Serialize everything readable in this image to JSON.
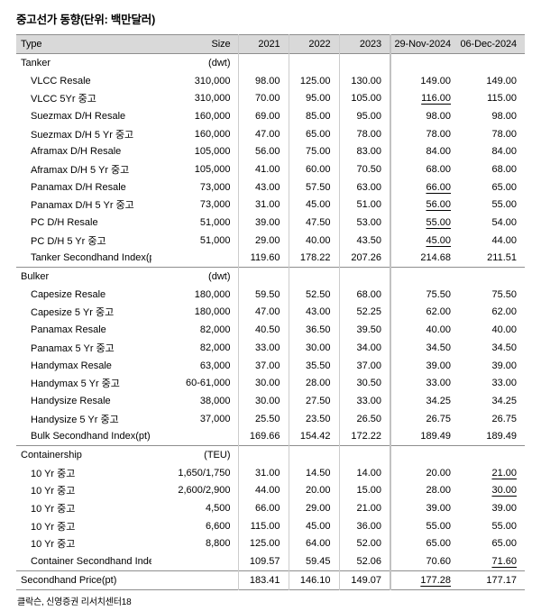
{
  "title": "중고선가 동향(단위: 백만달러)",
  "source": "클락슨, 신영증권 리서치센터18",
  "table": {
    "columns": [
      "Type",
      "Size",
      "2021",
      "2022",
      "2023",
      "29-Nov-2024",
      "06-Dec-2024"
    ],
    "rows": [
      {
        "kind": "section",
        "label": "Tanker",
        "size": "(dwt)",
        "values": [
          "",
          "",
          "",
          "",
          ""
        ]
      },
      {
        "kind": "item",
        "label": "VLCC Resale",
        "size": "310,000",
        "values": [
          "98.00",
          "125.00",
          "130.00",
          "149.00",
          "149.00"
        ]
      },
      {
        "kind": "item",
        "label": "VLCC 5Yr 중고",
        "size": "310,000",
        "values": [
          "70.00",
          "95.00",
          "105.00",
          "116.00",
          "115.00"
        ],
        "ul": [
          3
        ]
      },
      {
        "kind": "item",
        "label": "Suezmax D/H Resale",
        "size": "160,000",
        "values": [
          "69.00",
          "85.00",
          "95.00",
          "98.00",
          "98.00"
        ]
      },
      {
        "kind": "item",
        "label": "Suezmax D/H 5 Yr 중고",
        "size": "160,000",
        "values": [
          "47.00",
          "65.00",
          "78.00",
          "78.00",
          "78.00"
        ]
      },
      {
        "kind": "item",
        "label": "Aframax D/H Resale",
        "size": "105,000",
        "values": [
          "56.00",
          "75.00",
          "83.00",
          "84.00",
          "84.00"
        ]
      },
      {
        "kind": "item",
        "label": "Aframax D/H 5 Yr 중고",
        "size": "105,000",
        "values": [
          "41.00",
          "60.00",
          "70.50",
          "68.00",
          "68.00"
        ]
      },
      {
        "kind": "item",
        "label": "Panamax D/H Resale",
        "size": "73,000",
        "values": [
          "43.00",
          "57.50",
          "63.00",
          "66.00",
          "65.00"
        ],
        "ul": [
          3
        ]
      },
      {
        "kind": "item",
        "label": "Panamax D/H 5 Yr 중고",
        "size": "73,000",
        "values": [
          "31.00",
          "45.00",
          "51.00",
          "56.00",
          "55.00"
        ],
        "ul": [
          3
        ]
      },
      {
        "kind": "item",
        "label": "PC D/H Resale",
        "size": "51,000",
        "values": [
          "39.00",
          "47.50",
          "53.00",
          "55.00",
          "54.00"
        ],
        "ul": [
          3
        ]
      },
      {
        "kind": "item",
        "label": "PC D/H 5 Yr 중고",
        "size": "51,000",
        "values": [
          "29.00",
          "40.00",
          "43.50",
          "45.00",
          "44.00"
        ],
        "ul": [
          3
        ]
      },
      {
        "kind": "item",
        "label": "Tanker Secondhand Index(pt)",
        "size": "",
        "values": [
          "119.60",
          "178.22",
          "207.26",
          "214.68",
          "211.51"
        ]
      },
      {
        "kind": "section",
        "label": "Bulker",
        "size": "(dwt)",
        "values": [
          "",
          "",
          "",
          "",
          ""
        ]
      },
      {
        "kind": "item",
        "label": "Capesize Resale",
        "size": "180,000",
        "values": [
          "59.50",
          "52.50",
          "68.00",
          "75.50",
          "75.50"
        ]
      },
      {
        "kind": "item",
        "label": "Capesize 5 Yr 중고",
        "size": "180,000",
        "values": [
          "47.00",
          "43.00",
          "52.25",
          "62.00",
          "62.00"
        ]
      },
      {
        "kind": "item",
        "label": "Panamax Resale",
        "size": "82,000",
        "values": [
          "40.50",
          "36.50",
          "39.50",
          "40.00",
          "40.00"
        ]
      },
      {
        "kind": "item",
        "label": "Panamax 5 Yr 중고",
        "size": "82,000",
        "values": [
          "33.00",
          "30.00",
          "34.00",
          "34.50",
          "34.50"
        ]
      },
      {
        "kind": "item",
        "label": "Handymax Resale",
        "size": "63,000",
        "values": [
          "37.00",
          "35.50",
          "37.00",
          "39.00",
          "39.00"
        ]
      },
      {
        "kind": "item",
        "label": "Handymax 5 Yr 중고",
        "size": "60-61,000",
        "values": [
          "30.00",
          "28.00",
          "30.50",
          "33.00",
          "33.00"
        ]
      },
      {
        "kind": "item",
        "label": "Handysize Resale",
        "size": "38,000",
        "values": [
          "30.00",
          "27.50",
          "33.00",
          "34.25",
          "34.25"
        ]
      },
      {
        "kind": "item",
        "label": "Handysize 5 Yr 중고",
        "size": "37,000",
        "values": [
          "25.50",
          "23.50",
          "26.50",
          "26.75",
          "26.75"
        ]
      },
      {
        "kind": "item",
        "label": "Bulk Secondhand Index(pt)",
        "size": "",
        "values": [
          "169.66",
          "154.42",
          "172.22",
          "189.49",
          "189.49"
        ]
      },
      {
        "kind": "section",
        "label": "Containership",
        "size": "(TEU)",
        "values": [
          "",
          "",
          "",
          "",
          ""
        ]
      },
      {
        "kind": "item",
        "label": "10 Yr 중고",
        "size": "1,650/1,750",
        "values": [
          "31.00",
          "14.50",
          "14.00",
          "20.00",
          "21.00"
        ],
        "ul": [
          4
        ]
      },
      {
        "kind": "item",
        "label": "10 Yr 중고",
        "size": "2,600/2,900",
        "values": [
          "44.00",
          "20.00",
          "15.00",
          "28.00",
          "30.00"
        ],
        "ul": [
          4
        ]
      },
      {
        "kind": "item",
        "label": "10 Yr 중고",
        "size": "4,500",
        "values": [
          "66.00",
          "29.00",
          "21.00",
          "39.00",
          "39.00"
        ]
      },
      {
        "kind": "item",
        "label": "10 Yr 중고",
        "size": "6,600",
        "values": [
          "115.00",
          "45.00",
          "36.00",
          "55.00",
          "55.00"
        ]
      },
      {
        "kind": "item",
        "label": "10 Yr 중고",
        "size": "8,800",
        "values": [
          "125.00",
          "64.00",
          "52.00",
          "65.00",
          "65.00"
        ]
      },
      {
        "kind": "item",
        "label": "Container Secondhand Index(pt)",
        "size": "",
        "values": [
          "109.57",
          "59.45",
          "52.06",
          "70.60",
          "71.60"
        ],
        "ul": [
          4
        ]
      },
      {
        "kind": "total",
        "label": "Secondhand Price(pt)",
        "size": "",
        "values": [
          "183.41",
          "146.10",
          "149.07",
          "177.28",
          "177.17"
        ],
        "ul": [
          3
        ]
      }
    ]
  }
}
